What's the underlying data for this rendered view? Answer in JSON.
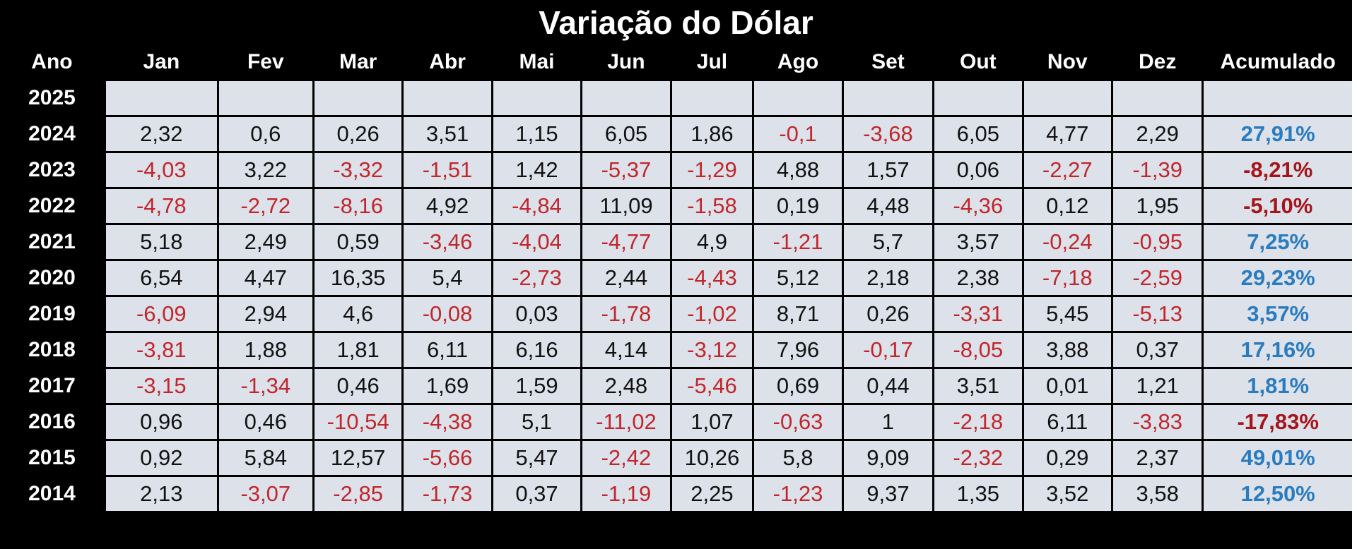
{
  "title": "Variação do Dólar",
  "table": {
    "header": [
      "Ano",
      "Jan",
      "Fev",
      "Mar",
      "Abr",
      "Mai",
      "Jun",
      "Jul",
      "Ago",
      "Set",
      "Out",
      "Nov",
      "Dez",
      "Acumulado"
    ],
    "rows": [
      [
        "2025"
      ],
      [
        "2024",
        "2,32",
        "0,6",
        "0,26",
        "3,51",
        "1,15",
        "6,05",
        "1,86",
        "-0,1",
        "-3,68",
        "6,05",
        "4,77",
        "2,29",
        "27,91%"
      ],
      [
        "2023",
        "-4,03",
        "3,22",
        "-3,32",
        "-1,51",
        "1,42",
        "-5,37",
        "-1,29",
        "4,88",
        "1,57",
        "0,06",
        "-2,27",
        "-1,39",
        "-8,21%"
      ],
      [
        "2022",
        "-4,78",
        "-2,72",
        "-8,16",
        "4,92",
        "-4,84",
        "11,09",
        "-1,58",
        "0,19",
        "4,48",
        "-4,36",
        "0,12",
        "1,95",
        "-5,10%"
      ],
      [
        "2021",
        "5,18",
        "2,49",
        "0,59",
        "-3,46",
        "-4,04",
        "-4,77",
        "4,9",
        "-1,21",
        "5,7",
        "3,57",
        "-0,24",
        "-0,95",
        "7,25%"
      ],
      [
        "2020",
        "6,54",
        "4,47",
        "16,35",
        "5,4",
        "-2,73",
        "2,44",
        "-4,43",
        "5,12",
        "2,18",
        "2,38",
        "-7,18",
        "-2,59",
        "29,23%"
      ],
      [
        "2019",
        "-6,09",
        "2,94",
        "4,6",
        "-0,08",
        "0,03",
        "-1,78",
        "-1,02",
        "8,71",
        "0,26",
        "-3,31",
        "5,45",
        "-5,13",
        "3,57%"
      ],
      [
        "2018",
        "-3,81",
        "1,88",
        "1,81",
        "6,11",
        "6,16",
        "4,14",
        "-3,12",
        "7,96",
        "-0,17",
        "-8,05",
        "3,88",
        "0,37",
        "17,16%"
      ],
      [
        "2017",
        "-3,15",
        "-1,34",
        "0,46",
        "1,69",
        "1,59",
        "2,48",
        "-5,46",
        "0,69",
        "0,44",
        "3,51",
        "0,01",
        "1,21",
        "1,81%"
      ],
      [
        "2016",
        "0,96",
        "0,46",
        "-10,54",
        "-4,38",
        "5,1",
        "-11,02",
        "1,07",
        "-0,63",
        "1",
        "-2,18",
        "6,11",
        "-3,83",
        "-17,83%"
      ],
      [
        "2015",
        "0,92",
        "5,84",
        "12,57",
        "-5,66",
        "5,47",
        "-2,42",
        "10,26",
        "5,8",
        "9,09",
        "-2,32",
        "0,29",
        "2,37",
        "49,01%"
      ],
      [
        "2014",
        "2,13",
        "-3,07",
        "-2,85",
        "-1,73",
        "0,37",
        "-1,19",
        "2,25",
        "-1,23",
        "9,37",
        "1,35",
        "3,52",
        "3,58",
        "12,50%"
      ]
    ]
  },
  "colors": {
    "negative": "#c0262b",
    "positive": "#111111",
    "accumulated_positive": "#2a7bbf",
    "accumulated_negative": "#a5141b"
  }
}
